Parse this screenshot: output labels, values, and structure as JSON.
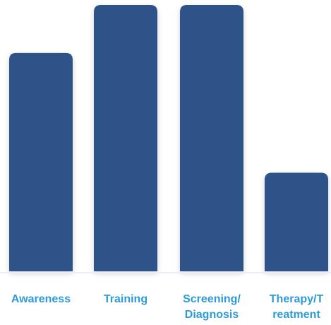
{
  "colors": {
    "bar": "#2d5289",
    "label": "#2f9bd6",
    "baseline": "#e9eef7",
    "background": "#ffffff"
  },
  "chart_data": {
    "type": "bar",
    "title": "",
    "xlabel": "",
    "ylabel": "",
    "ylim": [
      0,
      100
    ],
    "grid": false,
    "legend": "none",
    "categories": [
      {
        "lines": [
          "Awareness"
        ]
      },
      {
        "lines": [
          "Training"
        ]
      },
      {
        "lines": [
          "Screening/",
          "Diagnosis"
        ]
      },
      {
        "lines": [
          "Therapy/T",
          "reatment"
        ]
      }
    ],
    "values": [
      82,
      100,
      100,
      37
    ]
  }
}
